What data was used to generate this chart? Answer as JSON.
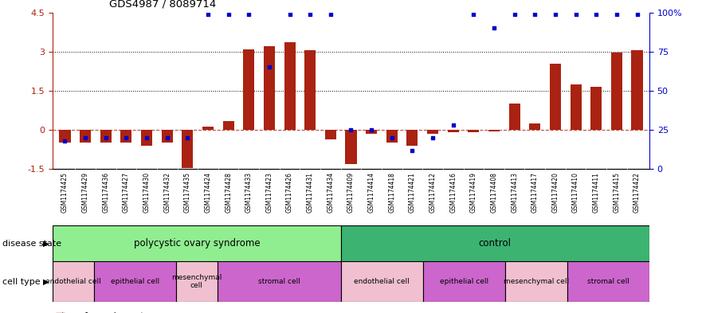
{
  "title": "GDS4987 / 8089714",
  "samples": [
    "GSM1174425",
    "GSM1174429",
    "GSM1174436",
    "GSM1174427",
    "GSM1174430",
    "GSM1174432",
    "GSM1174435",
    "GSM1174424",
    "GSM1174428",
    "GSM1174433",
    "GSM1174423",
    "GSM1174426",
    "GSM1174431",
    "GSM1174434",
    "GSM1174409",
    "GSM1174414",
    "GSM1174418",
    "GSM1174421",
    "GSM1174412",
    "GSM1174416",
    "GSM1174419",
    "GSM1174408",
    "GSM1174413",
    "GSM1174417",
    "GSM1174420",
    "GSM1174410",
    "GSM1174411",
    "GSM1174415",
    "GSM1174422"
  ],
  "transformed_count": [
    -0.5,
    -0.5,
    -0.5,
    -0.5,
    -0.6,
    -0.5,
    -1.45,
    0.12,
    0.35,
    3.1,
    3.2,
    3.35,
    3.05,
    -0.35,
    -1.3,
    -0.15,
    -0.5,
    -0.6,
    -0.15,
    -0.1,
    -0.1,
    -0.05,
    1.0,
    0.25,
    2.55,
    1.75,
    1.65,
    2.98,
    3.05
  ],
  "percentile_rank": [
    18,
    20,
    20,
    20,
    20,
    20,
    20,
    99,
    99,
    99,
    65,
    99,
    99,
    99,
    25,
    25,
    20,
    12,
    20,
    28,
    99,
    90,
    99,
    99,
    99,
    99,
    99,
    99,
    99
  ],
  "ylim_left": [
    -1.5,
    4.5
  ],
  "ylim_right": [
    0,
    100
  ],
  "yticks_left": [
    -1.5,
    0.0,
    1.5,
    3.0,
    4.5
  ],
  "yticklabels_left": [
    "-1.5",
    "0",
    "1.5",
    "3",
    "4.5"
  ],
  "yticks_right": [
    0,
    25,
    50,
    75,
    100
  ],
  "yticklabels_right": [
    "0",
    "25",
    "50",
    "75",
    "100%"
  ],
  "bar_color": "#aa2211",
  "dot_color": "#0000cc",
  "dotted_lines": [
    1.5,
    3.0
  ],
  "disease_state_label": "disease state",
  "cell_type_label": "cell type",
  "pcos_color": "#90ee90",
  "ctrl_color": "#3cb371",
  "cell_colors": [
    "#ffb6c1",
    "#da70d6",
    "#ffb6c1",
    "#da70d6",
    "#ffb6c1",
    "#da70d6",
    "#ffb6c1",
    "#da70d6"
  ],
  "cell_groups": [
    {
      "label": "endothelial cell",
      "start": 0,
      "end": 2,
      "color": "#f0c0d0"
    },
    {
      "label": "epithelial cell",
      "start": 2,
      "end": 6,
      "color": "#cc66cc"
    },
    {
      "label": "mesenchymal\ncell",
      "start": 6,
      "end": 8,
      "color": "#f0c0d0"
    },
    {
      "label": "stromal cell",
      "start": 8,
      "end": 14,
      "color": "#cc66cc"
    },
    {
      "label": "endothelial cell",
      "start": 14,
      "end": 18,
      "color": "#f0c0d0"
    },
    {
      "label": "epithelial cell",
      "start": 18,
      "end": 22,
      "color": "#cc66cc"
    },
    {
      "label": "mesenchymal cell",
      "start": 22,
      "end": 25,
      "color": "#f0c0d0"
    },
    {
      "label": "stromal cell",
      "start": 25,
      "end": 29,
      "color": "#cc66cc"
    }
  ]
}
